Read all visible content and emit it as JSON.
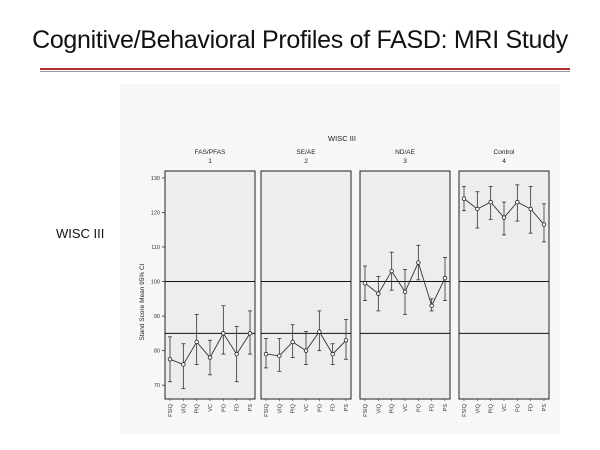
{
  "slide": {
    "title": "Cognitive/Behavioral Profiles of FASD: MRI Study",
    "side_label": "WISC III"
  },
  "colors": {
    "title_rule": "#b03030",
    "panel_fill": "#ededed",
    "chart_bg": "#f7f7f7"
  },
  "chart_data": {
    "type": "line",
    "title": "WISC III",
    "ylabel": "Stand Score Mean 95% CI",
    "ylim": [
      66,
      132
    ],
    "yticks": [
      70,
      80,
      90,
      100,
      110,
      120,
      130
    ],
    "reference_lines": [
      85,
      100
    ],
    "categories": [
      "FSIQ",
      "VIQ",
      "PIQ",
      "VC",
      "PO",
      "FD",
      "PS"
    ],
    "panels": [
      {
        "name": "FAS/PFAS",
        "index": "1",
        "means": [
          77.5,
          76,
          82.5,
          78,
          85,
          79,
          85
        ],
        "lower": [
          71,
          69,
          76,
          73,
          79,
          71,
          79
        ],
        "upper": [
          84,
          82,
          90.5,
          83,
          93,
          87,
          91.5
        ]
      },
      {
        "name": "SE/AE",
        "index": "2",
        "means": [
          79,
          78.5,
          82.5,
          80,
          85.5,
          79,
          83
        ],
        "lower": [
          75,
          74,
          78,
          76,
          80,
          76,
          77.5
        ],
        "upper": [
          83.5,
          83.5,
          87.5,
          85.5,
          91.5,
          82,
          89
        ]
      },
      {
        "name": "ND/AE",
        "index": "3",
        "means": [
          99.5,
          96.5,
          103,
          97,
          105.5,
          93,
          101
        ],
        "lower": [
          94.5,
          91.5,
          97.5,
          90.5,
          100.5,
          91.5,
          94.5
        ],
        "upper": [
          104.5,
          101.5,
          108.5,
          103.5,
          110.5,
          95,
          107
        ]
      },
      {
        "name": "Control",
        "index": "4",
        "means": [
          124,
          121,
          123,
          118.5,
          123,
          121,
          116.5
        ],
        "lower": [
          120.5,
          115.5,
          118,
          113.5,
          117.5,
          114,
          111.5
        ],
        "upper": [
          127.5,
          126,
          127.5,
          123,
          128,
          127.5,
          122.5
        ]
      }
    ]
  }
}
